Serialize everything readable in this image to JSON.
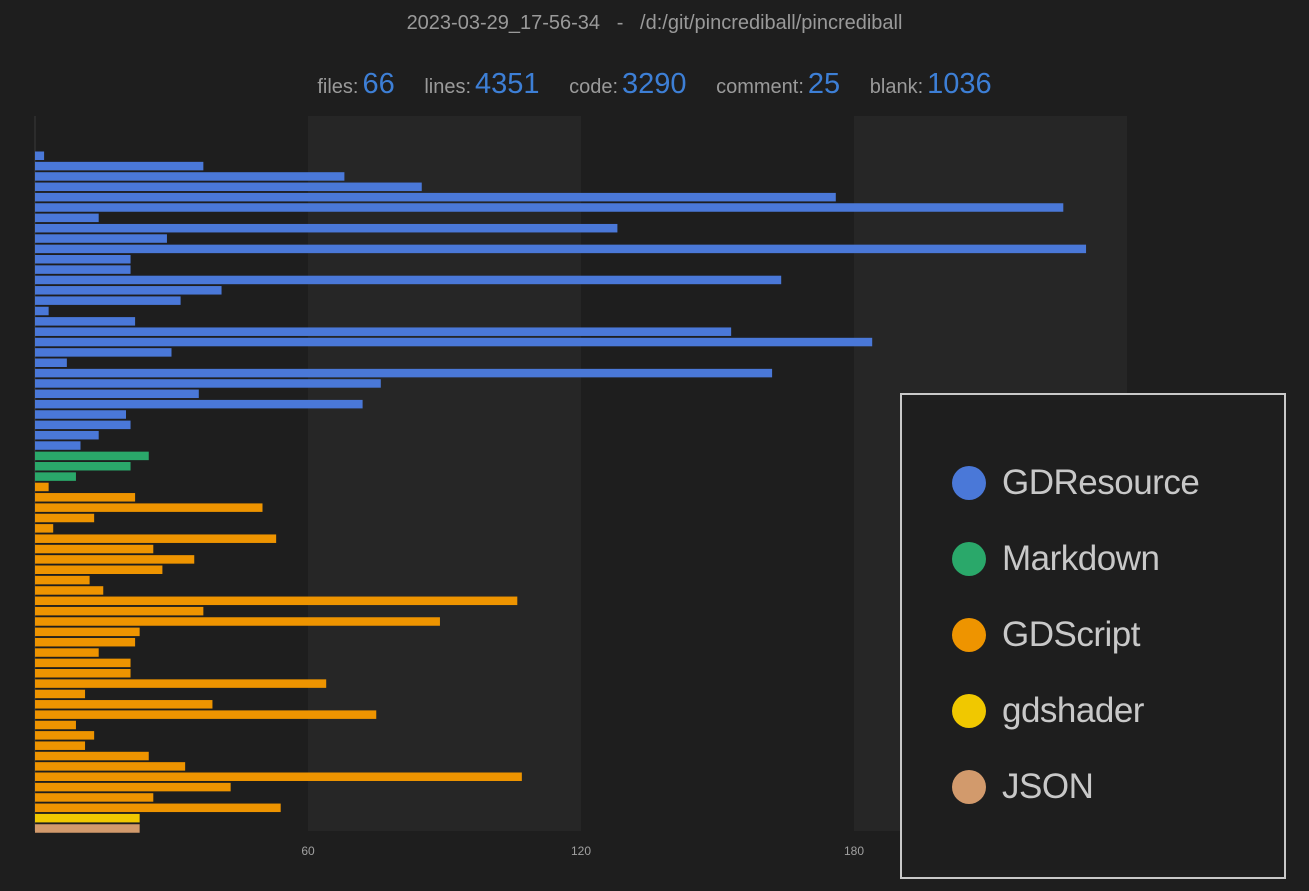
{
  "header": {
    "title": "2023-03-29_17-56-34   -   /d:/git/pincrediball/pincrediball"
  },
  "stats": [
    {
      "label": "files:",
      "value": "66"
    },
    {
      "label": "lines:",
      "value": "4351"
    },
    {
      "label": "code:",
      "value": "3290"
    },
    {
      "label": "comment:",
      "value": "25"
    },
    {
      "label": "blank:",
      "value": "1036"
    }
  ],
  "chart_data": {
    "type": "bar",
    "orientation": "horizontal",
    "title": "",
    "xlabel": "",
    "ylabel": "",
    "xlim": [
      0,
      240
    ],
    "xticks": [
      "60",
      "120",
      "180"
    ],
    "grid": "alternating vertical bands",
    "legend_position": "right",
    "colors": {
      "GDResource": "#4a78d8",
      "Markdown": "#2aa86a",
      "GDScript": "#ee9400",
      "gdshader": "#f0c800",
      "JSON": "#d29a6c"
    },
    "legend": [
      "GDResource",
      "Markdown",
      "GDScript",
      "gdshader",
      "JSON"
    ],
    "bars": [
      {
        "lang": "GDResource",
        "value": 2
      },
      {
        "lang": "GDResource",
        "value": 37
      },
      {
        "lang": "GDResource",
        "value": 68
      },
      {
        "lang": "GDResource",
        "value": 85
      },
      {
        "lang": "GDResource",
        "value": 176
      },
      {
        "lang": "GDResource",
        "value": 226
      },
      {
        "lang": "GDResource",
        "value": 14
      },
      {
        "lang": "GDResource",
        "value": 128
      },
      {
        "lang": "GDResource",
        "value": 29
      },
      {
        "lang": "GDResource",
        "value": 231
      },
      {
        "lang": "GDResource",
        "value": 21
      },
      {
        "lang": "GDResource",
        "value": 21
      },
      {
        "lang": "GDResource",
        "value": 164
      },
      {
        "lang": "GDResource",
        "value": 41
      },
      {
        "lang": "GDResource",
        "value": 32
      },
      {
        "lang": "GDResource",
        "value": 3
      },
      {
        "lang": "GDResource",
        "value": 22
      },
      {
        "lang": "GDResource",
        "value": 153
      },
      {
        "lang": "GDResource",
        "value": 184
      },
      {
        "lang": "GDResource",
        "value": 30
      },
      {
        "lang": "GDResource",
        "value": 7
      },
      {
        "lang": "GDResource",
        "value": 162
      },
      {
        "lang": "GDResource",
        "value": 76
      },
      {
        "lang": "GDResource",
        "value": 36
      },
      {
        "lang": "GDResource",
        "value": 72
      },
      {
        "lang": "GDResource",
        "value": 20
      },
      {
        "lang": "GDResource",
        "value": 21
      },
      {
        "lang": "GDResource",
        "value": 14
      },
      {
        "lang": "GDResource",
        "value": 10
      },
      {
        "lang": "Markdown",
        "value": 25
      },
      {
        "lang": "Markdown",
        "value": 21
      },
      {
        "lang": "Markdown",
        "value": 9
      },
      {
        "lang": "GDScript",
        "value": 3
      },
      {
        "lang": "GDScript",
        "value": 22
      },
      {
        "lang": "GDScript",
        "value": 50
      },
      {
        "lang": "GDScript",
        "value": 13
      },
      {
        "lang": "GDScript",
        "value": 4
      },
      {
        "lang": "GDScript",
        "value": 53
      },
      {
        "lang": "GDScript",
        "value": 26
      },
      {
        "lang": "GDScript",
        "value": 35
      },
      {
        "lang": "GDScript",
        "value": 28
      },
      {
        "lang": "GDScript",
        "value": 12
      },
      {
        "lang": "GDScript",
        "value": 15
      },
      {
        "lang": "GDScript",
        "value": 106
      },
      {
        "lang": "GDScript",
        "value": 37
      },
      {
        "lang": "GDScript",
        "value": 89
      },
      {
        "lang": "GDScript",
        "value": 23
      },
      {
        "lang": "GDScript",
        "value": 22
      },
      {
        "lang": "GDScript",
        "value": 14
      },
      {
        "lang": "GDScript",
        "value": 21
      },
      {
        "lang": "GDScript",
        "value": 21
      },
      {
        "lang": "GDScript",
        "value": 64
      },
      {
        "lang": "GDScript",
        "value": 11
      },
      {
        "lang": "GDScript",
        "value": 39
      },
      {
        "lang": "GDScript",
        "value": 75
      },
      {
        "lang": "GDScript",
        "value": 9
      },
      {
        "lang": "GDScript",
        "value": 13
      },
      {
        "lang": "GDScript",
        "value": 11
      },
      {
        "lang": "GDScript",
        "value": 25
      },
      {
        "lang": "GDScript",
        "value": 33
      },
      {
        "lang": "GDScript",
        "value": 107
      },
      {
        "lang": "GDScript",
        "value": 43
      },
      {
        "lang": "GDScript",
        "value": 26
      },
      {
        "lang": "GDScript",
        "value": 54
      },
      {
        "lang": "gdshader",
        "value": 23
      },
      {
        "lang": "JSON",
        "value": 23
      }
    ]
  }
}
